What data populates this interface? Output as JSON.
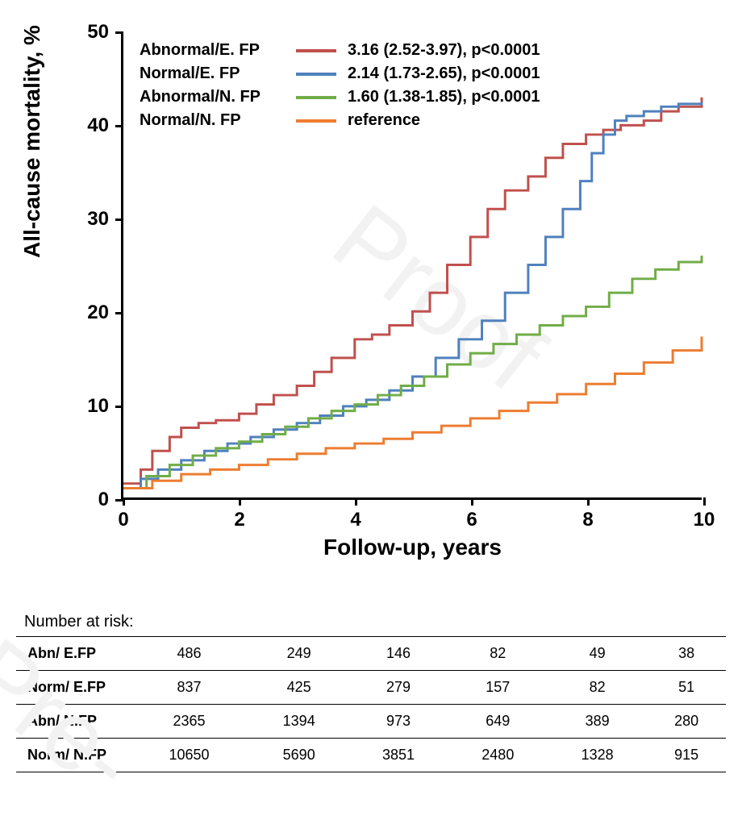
{
  "chart": {
    "type": "kaplan-meier-step",
    "background_color": "#ffffff",
    "axis_color": "#000000",
    "axis_width": 3,
    "ylabel": "All-cause mortality, %",
    "xlabel": "Follow-up, years",
    "label_fontsize": 28,
    "label_fontweight": 700,
    "tick_fontsize": 24,
    "tick_fontweight": 700,
    "xlim": [
      0,
      10
    ],
    "ylim": [
      0,
      50
    ],
    "xticks": [
      0,
      2,
      4,
      6,
      8,
      10
    ],
    "yticks": [
      0,
      10,
      20,
      30,
      40,
      50
    ],
    "line_width": 3,
    "legend": {
      "fontsize": 20,
      "fontweight": 700,
      "rows": [
        {
          "name": "Abnormal/E. FP",
          "color": "#c0504d",
          "stat": "3.16 (2.52-3.97), p<0.0001"
        },
        {
          "name": "Normal/E. FP",
          "color": "#4f81bd",
          "stat": "2.14 (1.73-2.65), p<0.0001"
        },
        {
          "name": "Abnormal/N. FP",
          "color": "#70ad47",
          "stat": "1.60 (1.38-1.85), p<0.0001"
        },
        {
          "name": "Normal/N. FP",
          "color": "#ed7d31",
          "stat": "reference"
        }
      ]
    },
    "series": [
      {
        "key": "abn_efp",
        "color": "#c0504d",
        "x": [
          0,
          0.3,
          0.5,
          0.8,
          1,
          1.3,
          1.6,
          2,
          2.3,
          2.6,
          3,
          3.3,
          3.6,
          4,
          4.3,
          4.6,
          5,
          5.3,
          5.6,
          6,
          6.3,
          6.6,
          7,
          7.3,
          7.6,
          8,
          8.3,
          8.6,
          9,
          9.3,
          9.6,
          10
        ],
        "y": [
          1.5,
          3,
          5,
          6.5,
          7.5,
          8,
          8.3,
          9,
          10,
          11,
          12,
          13.5,
          15,
          17,
          17.5,
          18.5,
          20,
          22,
          25,
          28,
          31,
          33,
          34.5,
          36.5,
          38,
          39,
          39.5,
          40,
          40.5,
          41.5,
          42,
          43
        ]
      },
      {
        "key": "norm_efp",
        "color": "#4f81bd",
        "x": [
          0,
          0.3,
          0.6,
          1,
          1.4,
          1.8,
          2.2,
          2.6,
          3,
          3.4,
          3.8,
          4.2,
          4.6,
          5,
          5.4,
          5.8,
          6.2,
          6.6,
          7,
          7.3,
          7.6,
          7.9,
          8.1,
          8.3,
          8.5,
          8.7,
          9,
          9.3,
          9.6,
          10
        ],
        "y": [
          1,
          2,
          3,
          4,
          5,
          5.8,
          6.5,
          7.3,
          8,
          8.8,
          9.8,
          10.5,
          11.5,
          13,
          15,
          17,
          19,
          22,
          25,
          28,
          31,
          34,
          37,
          39,
          40.5,
          41,
          41.5,
          42,
          42.3,
          42.5
        ]
      },
      {
        "key": "abn_nfp",
        "color": "#70ad47",
        "x": [
          0,
          0.4,
          0.8,
          1.2,
          1.6,
          2,
          2.4,
          2.8,
          3.2,
          3.6,
          4,
          4.4,
          4.8,
          5.2,
          5.6,
          6,
          6.4,
          6.8,
          7.2,
          7.6,
          8,
          8.4,
          8.8,
          9.2,
          9.6,
          10
        ],
        "y": [
          1,
          2.3,
          3.5,
          4.5,
          5.3,
          6,
          6.8,
          7.6,
          8.5,
          9.3,
          10,
          11,
          12,
          13,
          14.3,
          15.5,
          16.5,
          17.5,
          18.5,
          19.5,
          20.5,
          22,
          23.5,
          24.5,
          25.3,
          26
        ]
      },
      {
        "key": "norm_nfp",
        "color": "#ed7d31",
        "x": [
          0,
          0.5,
          1,
          1.5,
          2,
          2.5,
          3,
          3.5,
          4,
          4.5,
          5,
          5.5,
          6,
          6.5,
          7,
          7.5,
          8,
          8.5,
          9,
          9.5,
          10
        ],
        "y": [
          1,
          1.8,
          2.5,
          3,
          3.5,
          4.1,
          4.7,
          5.3,
          5.8,
          6.3,
          7,
          7.7,
          8.5,
          9.3,
          10.2,
          11.1,
          12.2,
          13.3,
          14.5,
          15.8,
          17.3
        ]
      }
    ]
  },
  "risk_table": {
    "title": "Number at risk:",
    "title_fontsize": 20,
    "cell_fontsize": 18,
    "columns_at_x": [
      0,
      2,
      4,
      6,
      8,
      10
    ],
    "rows": [
      {
        "label": "Abn/ E.FP",
        "cells": [
          486,
          249,
          146,
          82,
          49,
          38
        ]
      },
      {
        "label": "Norm/ E.FP",
        "cells": [
          837,
          425,
          279,
          157,
          82,
          51
        ]
      },
      {
        "label": "Abn/ N.FP",
        "cells": [
          2365,
          1394,
          973,
          649,
          389,
          280
        ]
      },
      {
        "label": "Norm/ N.FP",
        "cells": [
          10650,
          5690,
          3851,
          2480,
          1328,
          915
        ]
      }
    ]
  },
  "watermark": {
    "text_upper": "Proof",
    "text_lower": "Pre-",
    "color": "#f2f2f2",
    "fontsize": 120,
    "rotation_deg": 38
  }
}
